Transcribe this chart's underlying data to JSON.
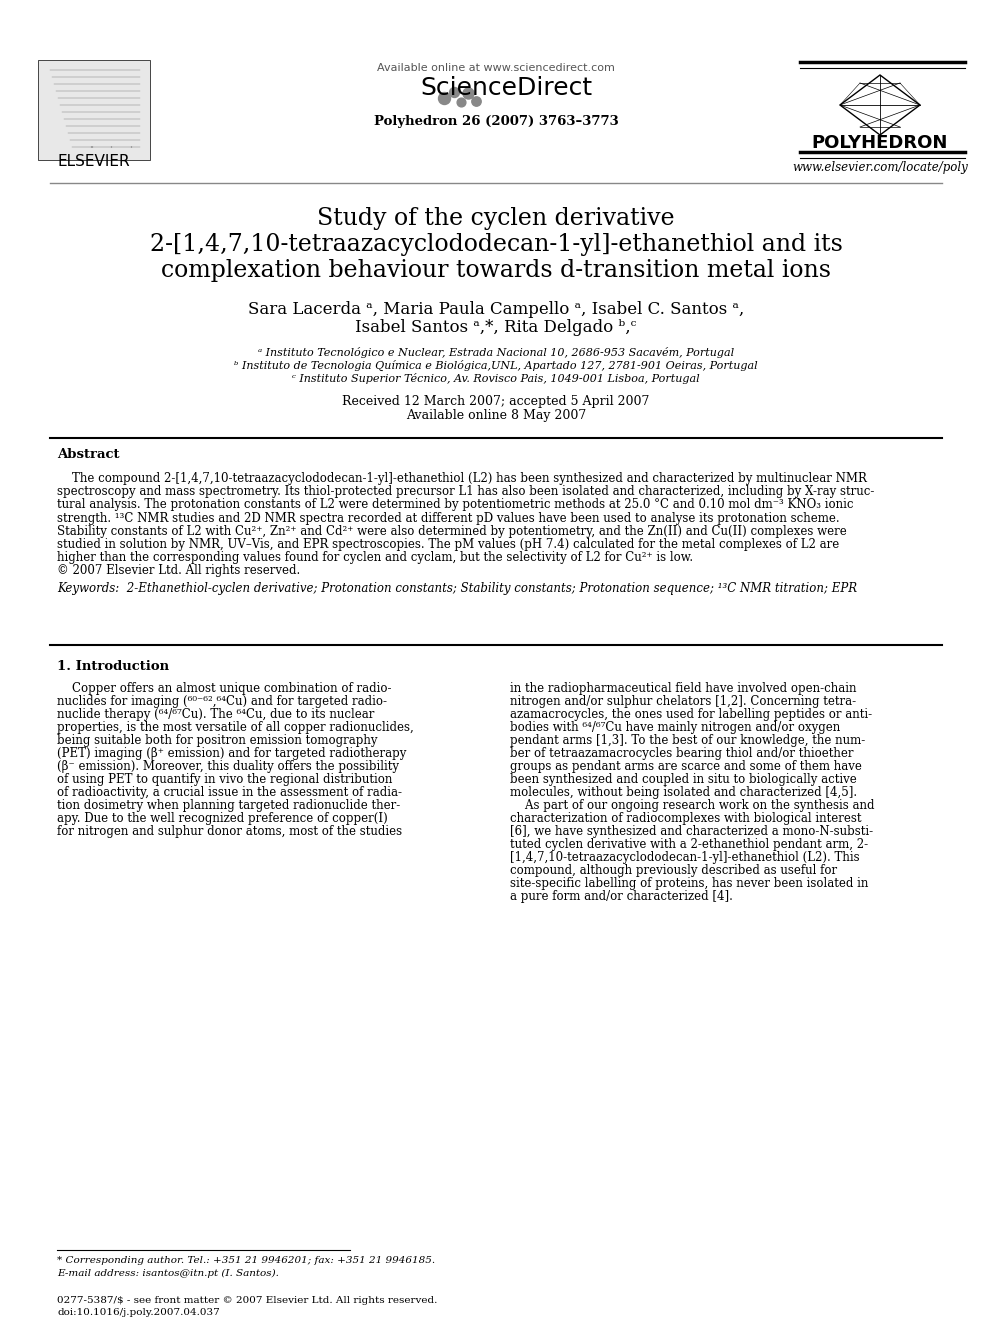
{
  "bg_color": "#ffffff",
  "header": {
    "available_online": "Available online at www.sciencedirect.com",
    "sciencedirect": "ScienceDirect",
    "journal_ref": "Polyhedron 26 (2007) 3763–3773",
    "elsevier": "ELSEVIER",
    "polyhedron": "POLYHEDRON",
    "website": "www.elsevier.com/locate/poly"
  },
  "title_line1": "Study of the cyclen derivative",
  "title_line2": "2-[1,4,7,10-tetraazacyclododecan-1-yl]-ethanethiol and its",
  "title_line3": "complexation behaviour towards d-transition metal ions",
  "authors_line1": "Sara Lacerda ᵃ, Maria Paula Campello ᵃ, Isabel C. Santos ᵃ,",
  "authors_line2": "Isabel Santos ᵃ,*, Rita Delgado ᵇ,ᶜ",
  "affil_a": "ᵃ Instituto Tecnológico e Nuclear, Estrada Nacional 10, 2686-953 Sacavém, Portugal",
  "affil_b": "ᵇ Instituto de Tecnologia Química e Biológica,UNL, Apartado 127, 2781-901 Oeiras, Portugal",
  "affil_c": "ᶜ Instituto Superior Técnico, Av. Rovisco Pais, 1049-001 Lisboa, Portugal",
  "dates_line1": "Received 12 March 2007; accepted 5 April 2007",
  "dates_line2": "Available online 8 May 2007",
  "abstract_title": "Abstract",
  "abstract_lines": [
    "    The compound 2-[1,4,7,10-tetraazacyclododecan-1-yl]-ethanethiol (L2) has been synthesized and characterized by multinuclear NMR",
    "spectroscopy and mass spectrometry. Its thiol-protected precursor L1 has also been isolated and characterized, including by X-ray struc-",
    "tural analysis. The protonation constants of L2 were determined by potentiometric methods at 25.0 °C and 0.10 mol dm⁻³ KNO₃ ionic",
    "strength. ¹³C NMR studies and 2D NMR spectra recorded at different pD values have been used to analyse its protonation scheme.",
    "Stability constants of L2 with Cu²⁺, Zn²⁺ and Cd²⁺ were also determined by potentiometry, and the Zn(II) and Cu(II) complexes were",
    "studied in solution by NMR, UV–Vis, and EPR spectroscopies. The pM values (pH 7.4) calculated for the metal complexes of L2 are",
    "higher than the corresponding values found for cyclen and cyclam, but the selectivity of L2 for Cu²⁺ is low.",
    "© 2007 Elsevier Ltd. All rights reserved."
  ],
  "keywords": "Keywords:  2-Ethanethiol-cyclen derivative; Protonation constants; Stability constants; Protonation sequence; ¹³C NMR titration; EPR",
  "intro_title": "1. Introduction",
  "intro_col1_lines": [
    "    Copper offers an almost unique combination of radio-",
    "nuclides for imaging (⁶⁰⁻⁶²,⁶⁴Cu) and for targeted radio-",
    "nuclide therapy (⁶⁴/⁶⁷Cu). The ⁶⁴Cu, due to its nuclear",
    "properties, is the most versatile of all copper radionuclides,",
    "being suitable both for positron emission tomography",
    "(PET) imaging (β⁺ emission) and for targeted radiotherapy",
    "(β⁻ emission). Moreover, this duality offers the possibility",
    "of using PET to quantify in vivo the regional distribution",
    "of radioactivity, a crucial issue in the assessment of radia-",
    "tion dosimetry when planning targeted radionuclide ther-",
    "apy. Due to the well recognized preference of copper(I)",
    "for nitrogen and sulphur donor atoms, most of the studies"
  ],
  "intro_col2_lines": [
    "in the radiopharmaceutical field have involved open-chain",
    "nitrogen and/or sulphur chelators [1,2]. Concerning tetra-",
    "azamacrocycles, the ones used for labelling peptides or anti-",
    "bodies with ⁶⁴/⁶⁷Cu have mainly nitrogen and/or oxygen",
    "pendant arms [1,3]. To the best of our knowledge, the num-",
    "ber of tetraazamacrocycles bearing thiol and/or thioether",
    "groups as pendant arms are scarce and some of them have",
    "been synthesized and coupled in situ to biologically active",
    "molecules, without being isolated and characterized [4,5].",
    "    As part of our ongoing research work on the synthesis and",
    "characterization of radiocomplexes with biological interest",
    "[6], we have synthesized and characterized a mono-N-substi-",
    "tuted cyclen derivative with a 2-ethanethiol pendant arm, 2-",
    "[1,4,7,10-tetraazacyclododecan-1-yl]-ethanethiol (L2). This",
    "compound, although previously described as useful for",
    "site-specific labelling of proteins, has never been isolated in",
    "a pure form and/or characterized [4]."
  ],
  "footnote_line1": "* Corresponding author. Tel.: +351 21 9946201; fax: +351 21 9946185.",
  "footnote_line2": "E-mail address: isantos@itn.pt (I. Santos).",
  "bottom_line1": "0277-5387/$ - see front matter © 2007 Elsevier Ltd. All rights reserved.",
  "bottom_line2": "doi:10.1016/j.poly.2007.04.037"
}
